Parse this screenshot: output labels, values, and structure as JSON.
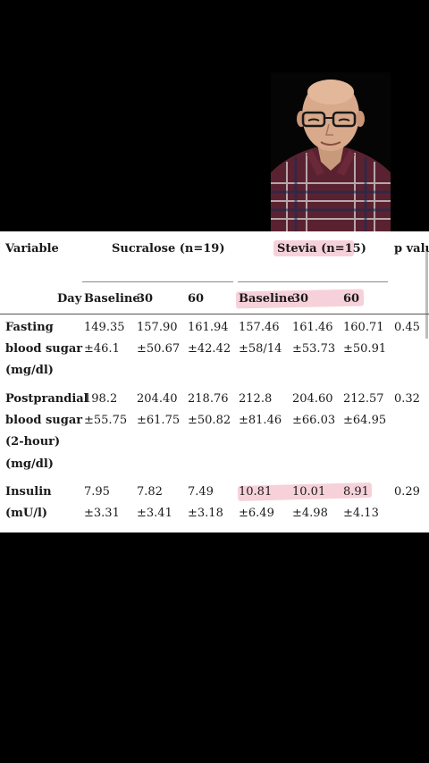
{
  "table": {
    "header": {
      "variable": "Variable",
      "sucralose": "Sucralose (n=19)",
      "stevia": "Stevia (n=15)",
      "pvalue": "p valu"
    },
    "subheader": {
      "day": "Day",
      "s_baseline": "Baseline",
      "s_30": "30",
      "s_60": "60",
      "st_baseline": "Baseline",
      "st_30": "30",
      "st_60": "60"
    },
    "rows": [
      {
        "label": [
          "Fasting",
          "blood sugar",
          "(mg/dl)"
        ],
        "s_base": [
          "149.35",
          "±46.1"
        ],
        "s_30": [
          "157.90",
          "±50.67"
        ],
        "s_60": [
          "161.94",
          "±42.42"
        ],
        "st_base": [
          "157.46",
          "±58/14"
        ],
        "st_30": [
          "161.46",
          "±53.73"
        ],
        "st_60": [
          "160.71",
          "±50.91"
        ],
        "p": "0.45"
      },
      {
        "label": [
          "Postprandial",
          "blood sugar",
          "(2-hour)",
          "(mg/dl)"
        ],
        "s_base": [
          "198.2",
          "±55.75"
        ],
        "s_30": [
          "204.40",
          "±61.75"
        ],
        "s_60": [
          "218.76",
          "±50.82"
        ],
        "st_base": [
          "212.8",
          "±81.46"
        ],
        "st_30": [
          "204.60",
          "±66.03"
        ],
        "st_60": [
          "212.57",
          "±64.95"
        ],
        "p": "0.32"
      },
      {
        "label": [
          "Insulin",
          "(mU/l)"
        ],
        "s_base": [
          "7.95",
          "±3.31"
        ],
        "s_30": [
          "7.82",
          "±3.41"
        ],
        "s_60": [
          "7.49",
          "±3.18"
        ],
        "st_base": [
          "10.81",
          "±6.49"
        ],
        "st_30": [
          "10.01",
          "±4.98"
        ],
        "st_60": [
          "8.91",
          "±4.13"
        ],
        "p": "0.29"
      }
    ]
  },
  "colors": {
    "highlight": "#f6c9d3",
    "background": "#000000",
    "sheet": "#ffffff"
  }
}
